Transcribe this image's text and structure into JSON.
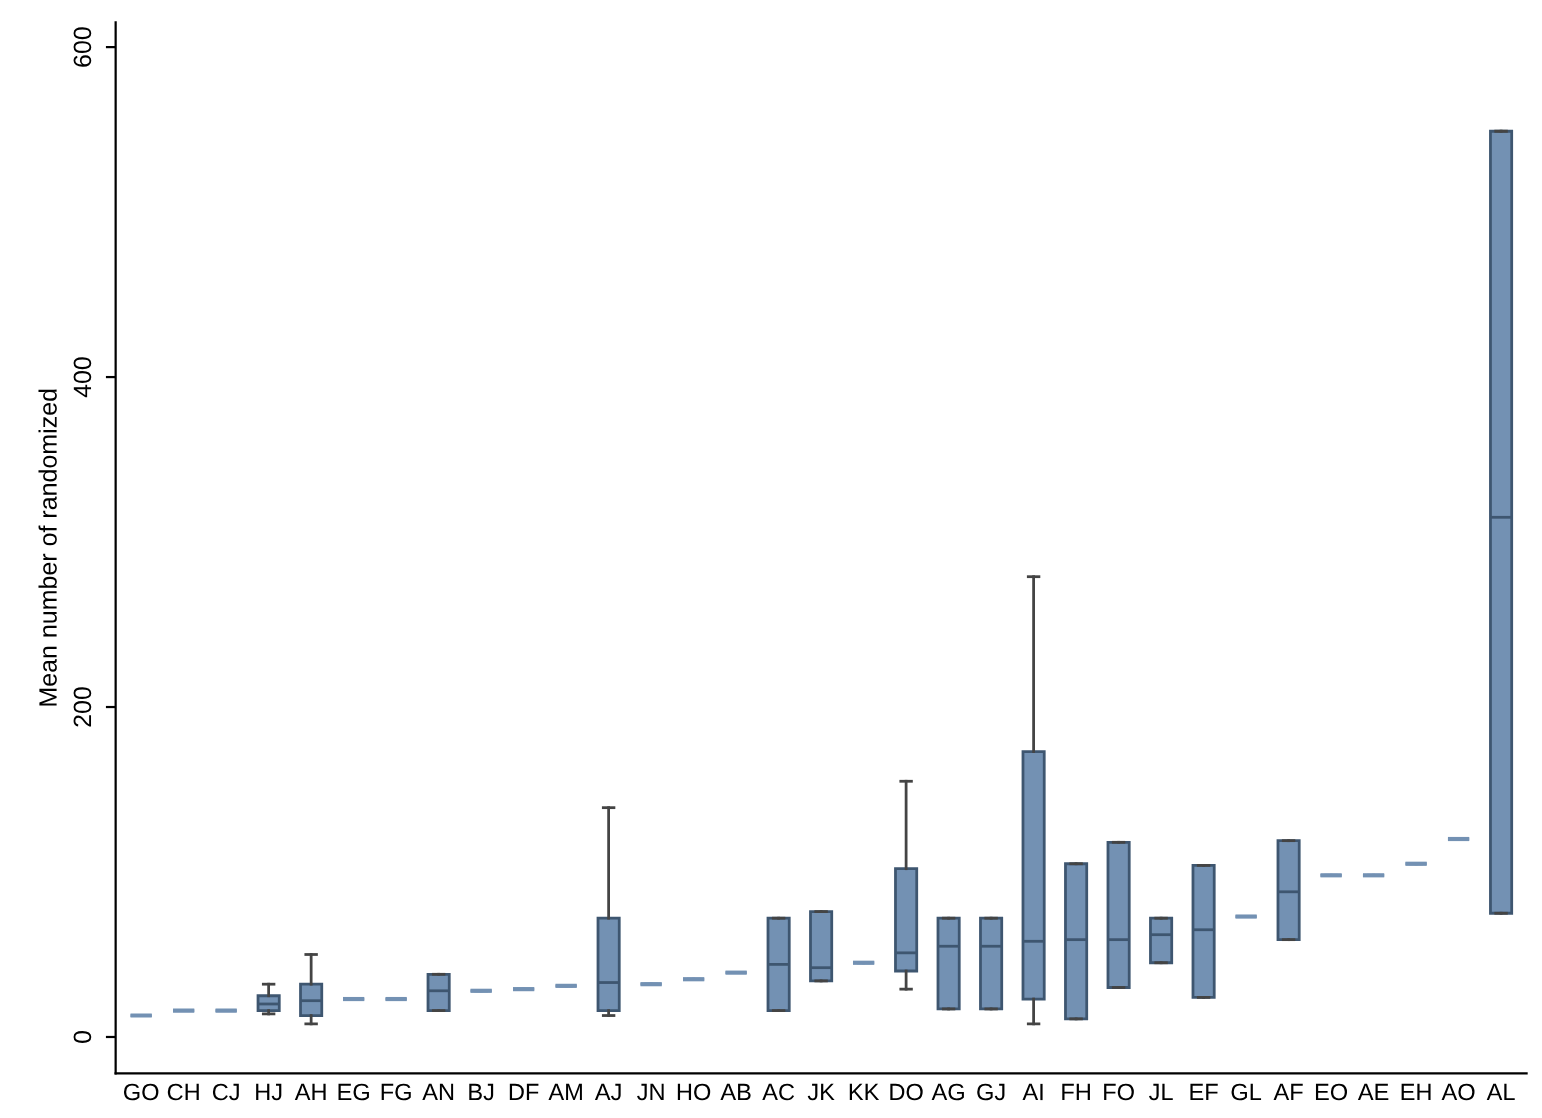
{
  "chart_data": {
    "type": "box",
    "ylabel": "Mean number of randomized",
    "categories": [
      "GO",
      "CH",
      "CJ",
      "HJ",
      "AH",
      "EG",
      "FG",
      "AN",
      "BJ",
      "DF",
      "AM",
      "AJ",
      "JN",
      "HO",
      "AB",
      "AC",
      "JK",
      "KK",
      "DO",
      "AG",
      "GJ",
      "AI",
      "FH",
      "FO",
      "JL",
      "EF",
      "GL",
      "AF",
      "EO",
      "AE",
      "EH",
      "AO",
      "AL"
    ],
    "color": "#7391b3",
    "boxes": [
      {
        "low": 13,
        "q1": 13,
        "median": 13,
        "q3": 13,
        "high": 13
      },
      {
        "low": 16,
        "q1": 16,
        "median": 16,
        "q3": 16,
        "high": 16
      },
      {
        "low": 16,
        "q1": 16,
        "median": 16,
        "q3": 16,
        "high": 16
      },
      {
        "low": 14,
        "q1": 16,
        "median": 20,
        "q3": 25,
        "high": 32
      },
      {
        "low": 8,
        "q1": 13,
        "median": 22,
        "q3": 32,
        "high": 50
      },
      {
        "low": 23,
        "q1": 23,
        "median": 23,
        "q3": 23,
        "high": 23
      },
      {
        "low": 23,
        "q1": 23,
        "median": 23,
        "q3": 23,
        "high": 23
      },
      {
        "low": 16,
        "q1": 16,
        "median": 28,
        "q3": 38,
        "high": 38
      },
      {
        "low": 28,
        "q1": 28,
        "median": 28,
        "q3": 28,
        "high": 28
      },
      {
        "low": 29,
        "q1": 29,
        "median": 29,
        "q3": 29,
        "high": 29
      },
      {
        "low": 31,
        "q1": 31,
        "median": 31,
        "q3": 31,
        "high": 31
      },
      {
        "low": 13,
        "q1": 16,
        "median": 33,
        "q3": 72,
        "high": 139
      },
      {
        "low": 32,
        "q1": 32,
        "median": 32,
        "q3": 32,
        "high": 32
      },
      {
        "low": 35,
        "q1": 35,
        "median": 35,
        "q3": 35,
        "high": 35
      },
      {
        "low": 39,
        "q1": 39,
        "median": 39,
        "q3": 39,
        "high": 39
      },
      {
        "low": 16,
        "q1": 16,
        "median": 44,
        "q3": 72,
        "high": 72
      },
      {
        "low": 34,
        "q1": 34,
        "median": 42,
        "q3": 76,
        "high": 76
      },
      {
        "low": 45,
        "q1": 45,
        "median": 45,
        "q3": 45,
        "high": 45
      },
      {
        "low": 29,
        "q1": 40,
        "median": 51,
        "q3": 102,
        "high": 155
      },
      {
        "low": 17,
        "q1": 17,
        "median": 55,
        "q3": 72,
        "high": 72
      },
      {
        "low": 17,
        "q1": 17,
        "median": 55,
        "q3": 72,
        "high": 72
      },
      {
        "low": 8,
        "q1": 23,
        "median": 58,
        "q3": 173,
        "high": 279
      },
      {
        "low": 11,
        "q1": 11,
        "median": 59,
        "q3": 105,
        "high": 105
      },
      {
        "low": 30,
        "q1": 30,
        "median": 59,
        "q3": 118,
        "high": 118
      },
      {
        "low": 45,
        "q1": 45,
        "median": 62,
        "q3": 72,
        "high": 72
      },
      {
        "low": 24,
        "q1": 24,
        "median": 65,
        "q3": 104,
        "high": 104
      },
      {
        "low": 73,
        "q1": 73,
        "median": 73,
        "q3": 73,
        "high": 73
      },
      {
        "low": 59,
        "q1": 59,
        "median": 88,
        "q3": 119,
        "high": 119
      },
      {
        "low": 98,
        "q1": 98,
        "median": 98,
        "q3": 98,
        "high": 98
      },
      {
        "low": 98,
        "q1": 98,
        "median": 98,
        "q3": 98,
        "high": 98
      },
      {
        "low": 105,
        "q1": 105,
        "median": 105,
        "q3": 105,
        "high": 105
      },
      {
        "low": 120,
        "q1": 120,
        "median": 120,
        "q3": 120,
        "high": 120
      },
      {
        "low": 75,
        "q1": 75,
        "median": 315,
        "q3": 549,
        "high": 549
      }
    ],
    "ylim": [
      -22,
      615
    ],
    "yticks": [
      0,
      200,
      400,
      600
    ],
    "grid": false
  }
}
